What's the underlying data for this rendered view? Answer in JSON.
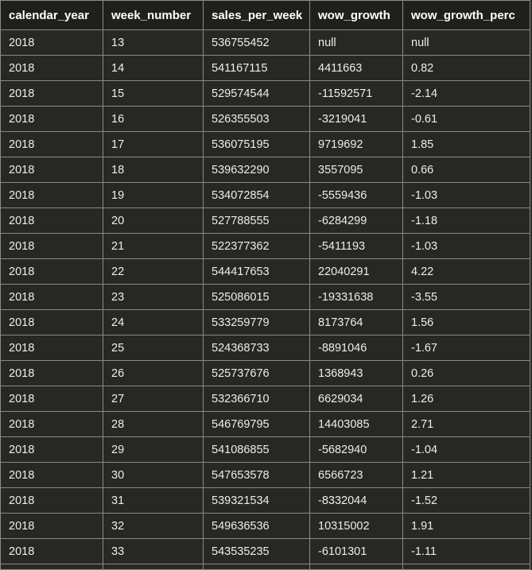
{
  "table": {
    "columns": [
      "calendar_year",
      "week_number",
      "sales_per_week",
      "wow_growth",
      "wow_growth_perc"
    ],
    "rows": [
      [
        "2018",
        "13",
        "536755452",
        "null",
        "null"
      ],
      [
        "2018",
        "14",
        "541167115",
        "4411663",
        "0.82"
      ],
      [
        "2018",
        "15",
        "529574544",
        "-11592571",
        "-2.14"
      ],
      [
        "2018",
        "16",
        "526355503",
        "-3219041",
        "-0.61"
      ],
      [
        "2018",
        "17",
        "536075195",
        "9719692",
        "1.85"
      ],
      [
        "2018",
        "18",
        "539632290",
        "3557095",
        "0.66"
      ],
      [
        "2018",
        "19",
        "534072854",
        "-5559436",
        "-1.03"
      ],
      [
        "2018",
        "20",
        "527788555",
        "-6284299",
        "-1.18"
      ],
      [
        "2018",
        "21",
        "522377362",
        "-5411193",
        "-1.03"
      ],
      [
        "2018",
        "22",
        "544417653",
        "22040291",
        "4.22"
      ],
      [
        "2018",
        "23",
        "525086015",
        "-19331638",
        "-3.55"
      ],
      [
        "2018",
        "24",
        "533259779",
        "8173764",
        "1.56"
      ],
      [
        "2018",
        "25",
        "524368733",
        "-8891046",
        "-1.67"
      ],
      [
        "2018",
        "26",
        "525737676",
        "1368943",
        "0.26"
      ],
      [
        "2018",
        "27",
        "532366710",
        "6629034",
        "1.26"
      ],
      [
        "2018",
        "28",
        "546769795",
        "14403085",
        "2.71"
      ],
      [
        "2018",
        "29",
        "541086855",
        "-5682940",
        "-1.04"
      ],
      [
        "2018",
        "30",
        "547653578",
        "6566723",
        "1.21"
      ],
      [
        "2018",
        "31",
        "539321534",
        "-8332044",
        "-1.52"
      ],
      [
        "2018",
        "32",
        "549636536",
        "10315002",
        "1.91"
      ],
      [
        "2018",
        "33",
        "543535235",
        "-6101301",
        "-1.11"
      ]
    ]
  }
}
